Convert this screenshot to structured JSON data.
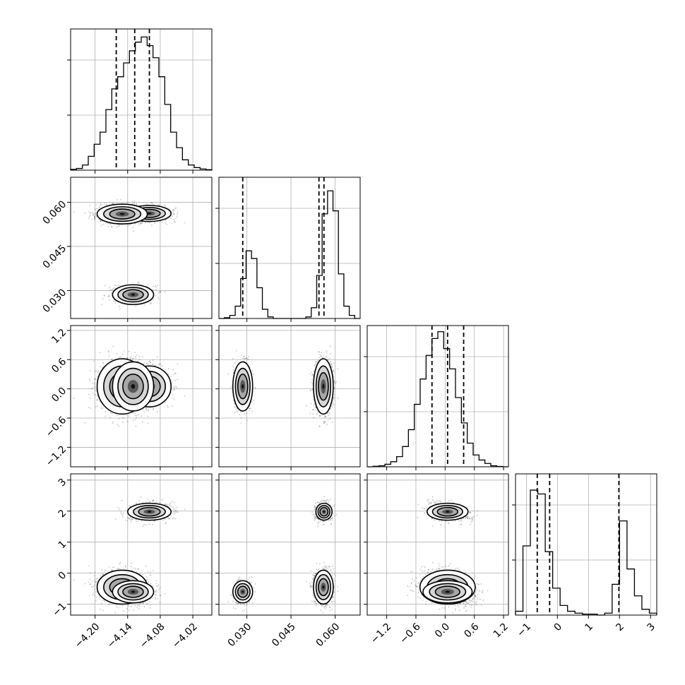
{
  "chart_data": {
    "type": "corner",
    "title": "",
    "grid": true,
    "quantile_lines": "dashed",
    "parameters": [
      {
        "index": 0,
        "range": [
          -4.245,
          -3.985
        ],
        "ticks": [
          -4.2,
          -4.14,
          -4.08,
          -4.02
        ],
        "tick_labels": [
          "−4.20",
          "−4.14",
          "−4.08",
          "−4.02"
        ],
        "quantiles": [
          -4.161,
          -4.127,
          -4.1
        ],
        "histogram": [
          0.5,
          1,
          3,
          8,
          15,
          22,
          35,
          47,
          54,
          62,
          69,
          74,
          77,
          72,
          65,
          54,
          38,
          22,
          13,
          6,
          3,
          1.5,
          0.7,
          0.3
        ],
        "hist_max": 80
      },
      {
        "index": 1,
        "range": [
          0.0205,
          0.0685
        ],
        "ticks": [
          0.03,
          0.045,
          0.06
        ],
        "tick_labels": [
          "0.030",
          "0.045",
          "0.060"
        ],
        "quantiles": [
          0.0286,
          0.0545,
          0.0562
        ],
        "histogram": [
          0,
          0.5,
          2,
          8,
          26,
          44,
          39,
          20,
          6,
          1,
          0,
          0,
          0,
          0,
          0,
          0,
          1,
          7,
          28,
          68,
          83,
          70,
          29,
          8,
          2,
          0
        ],
        "hist_max": 90
      },
      {
        "index": 2,
        "range": [
          -1.6,
          1.3
        ],
        "ticks": [
          -1.2,
          -0.6,
          0.0,
          0.6,
          1.2
        ],
        "tick_labels": [
          "−1.2",
          "−0.6",
          "0.0",
          "0.6",
          "1.2"
        ],
        "quantiles": [
          -0.27,
          0.05,
          0.38
        ],
        "histogram": [
          0,
          0.3,
          0.6,
          1.5,
          3,
          6,
          12,
          22,
          37,
          52,
          66,
          76,
          80,
          70,
          58,
          41,
          26,
          14,
          7,
          4,
          2,
          0.6,
          0.2,
          0
        ],
        "hist_max": 82
      },
      {
        "index": 3,
        "range": [
          -1.35,
          3.2
        ],
        "ticks": [
          -1,
          0,
          1,
          2,
          3
        ],
        "tick_labels": [
          "−1",
          "0",
          "1",
          "2",
          "3"
        ],
        "quantiles": [
          -0.65,
          -0.25,
          1.98
        ],
        "histogram": [
          2,
          36,
          65,
          63,
          33,
          14,
          5,
          2,
          1,
          0.5,
          0.5,
          0,
          1,
          16,
          49,
          24,
          10,
          3,
          1
        ],
        "hist_max": 72
      }
    ],
    "modes": [
      {
        "means": [
          -4.1,
          0.0562,
          0.05,
          1.98
        ],
        "stds": [
          0.019,
          0.0013,
          0.2,
          0.13
        ],
        "weight": 0.3
      },
      {
        "means": [
          -4.15,
          0.056,
          0.05,
          -0.45
        ],
        "stds": [
          0.022,
          0.0016,
          0.27,
          0.26
        ],
        "weight": 0.45
      },
      {
        "means": [
          -4.13,
          0.0286,
          0.05,
          -0.6
        ],
        "stds": [
          0.018,
          0.0016,
          0.24,
          0.17
        ],
        "weight": 0.25
      }
    ]
  }
}
